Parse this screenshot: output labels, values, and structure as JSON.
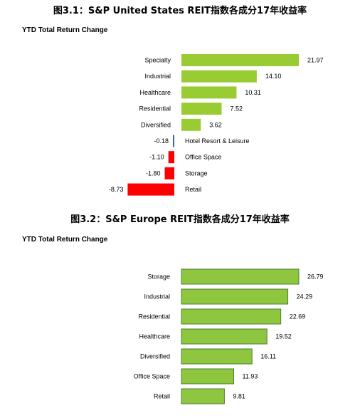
{
  "figures": [
    {
      "title": "图3.1：S&P United States REIT指数各成分17年收益率",
      "subtitle": "YTD Total Return Change"
    },
    {
      "title": "图3.2：S&P Europe REIT指数各成分17年收益率",
      "subtitle": "YTD Total Return Change"
    }
  ],
  "colors": {
    "positive": "#99cc33",
    "negative": "#ff0000",
    "near_zero": "#336699",
    "euro_bar": "#8fc63f",
    "euro_border": "#4d7f30"
  },
  "chart_data": [
    {
      "type": "bar",
      "orientation": "horizontal",
      "title": "S&P United States REIT指数各成分17年收益率",
      "subtitle": "YTD Total Return Change",
      "categories": [
        "Specialty",
        "Industrial",
        "Healthcare",
        "Residential",
        "Diversified",
        "Hotel Resort & Leisure",
        "Office Space",
        "Storage",
        "Retail"
      ],
      "values": [
        21.97,
        14.1,
        10.31,
        7.52,
        3.62,
        -0.18,
        -1.1,
        -1.8,
        -8.73
      ],
      "value_labels": [
        "21.97",
        "14.10",
        "10.31",
        "7.52",
        "3.62",
        "-0.18",
        "-1.10",
        "-1.80",
        "-8.73"
      ],
      "xlim": [
        -8.73,
        21.97
      ],
      "grid": false,
      "legend": "none"
    },
    {
      "type": "bar",
      "orientation": "horizontal",
      "title": "S&P Europe REIT指数各成分17年收益率",
      "subtitle": "YTD Total Return Change",
      "categories": [
        "Storage",
        "Industrial",
        "Residential",
        "Healthcare",
        "Diversified",
        "Office Space",
        "Retail"
      ],
      "values": [
        26.79,
        24.29,
        22.69,
        19.52,
        16.11,
        11.93,
        9.81
      ],
      "value_labels": [
        "26.79",
        "24.29",
        "22.69",
        "19.52",
        "16.11",
        "11.93",
        "9.81"
      ],
      "xlim": [
        0,
        26.79
      ],
      "grid": false,
      "legend": "none"
    }
  ]
}
